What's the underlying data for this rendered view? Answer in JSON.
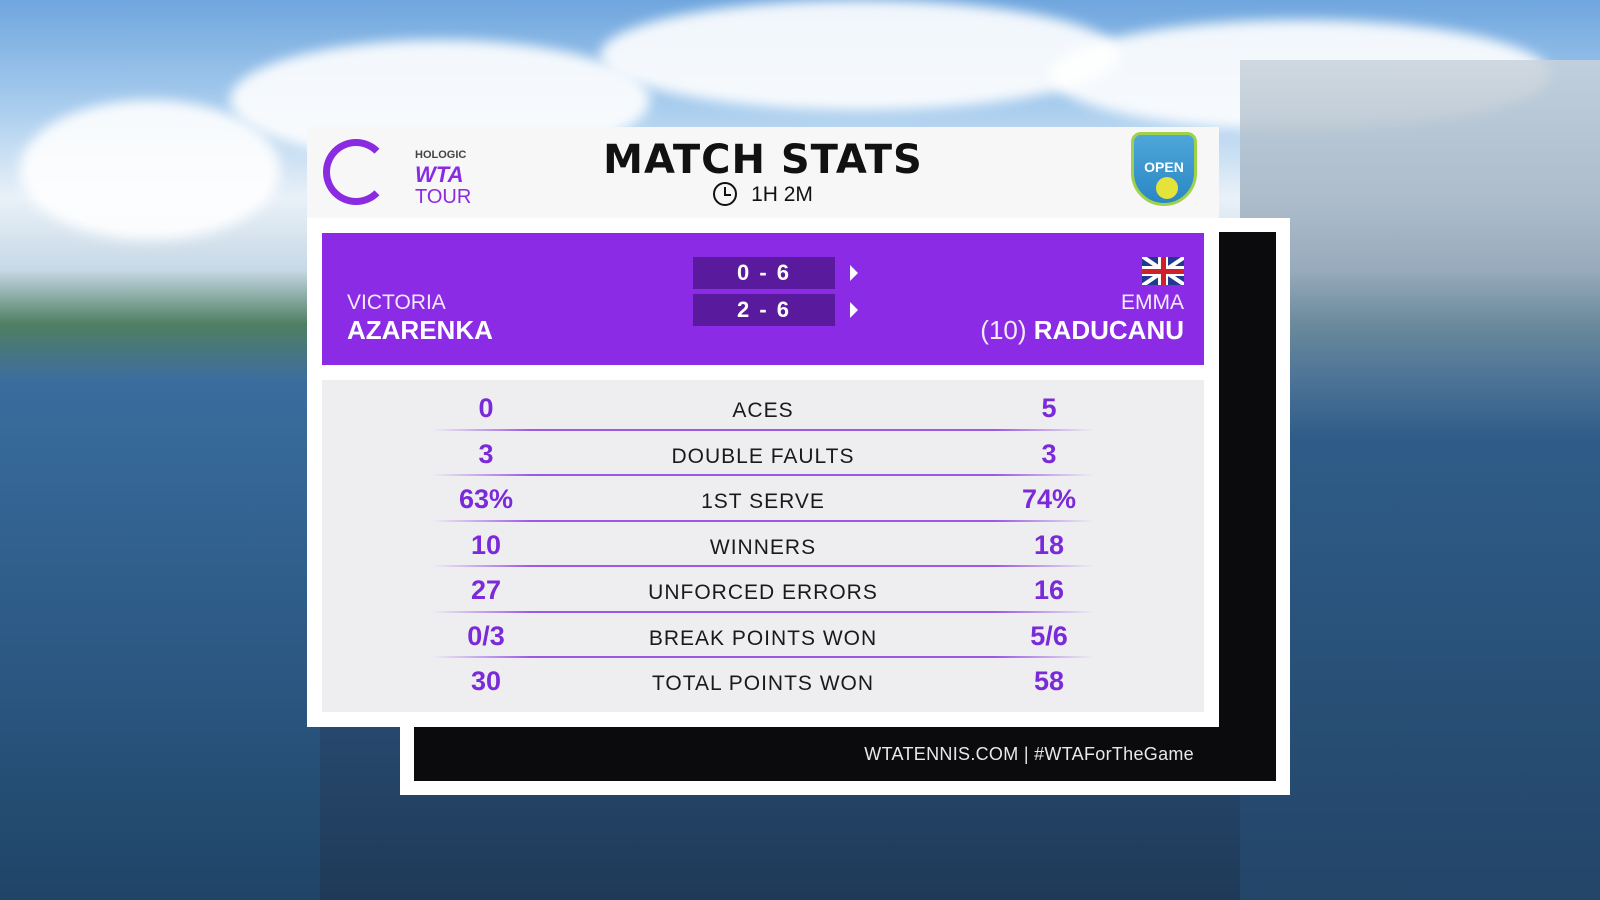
{
  "header": {
    "title": "MATCH STATS",
    "duration": "1H 2M",
    "logo_left": {
      "line1": "HOLOGIC",
      "line2": "WTA",
      "line3": "TOUR"
    },
    "logo_right": "OPEN"
  },
  "match": {
    "player1": {
      "first": "VICTORIA",
      "last": "AZARENKA",
      "seed": ""
    },
    "player2": {
      "first": "EMMA",
      "last": "RADUCANU",
      "seed": "(10)",
      "flag": "great-britain-flag"
    },
    "sets": [
      "0 - 6",
      "2 - 6"
    ]
  },
  "stats": [
    {
      "label": "ACES",
      "p1": "0",
      "p2": "5"
    },
    {
      "label": "DOUBLE FAULTS",
      "p1": "3",
      "p2": "3"
    },
    {
      "label": "1ST SERVE",
      "p1": "63%",
      "p2": "74%"
    },
    {
      "label": "WINNERS",
      "p1": "10",
      "p2": "18"
    },
    {
      "label": "UNFORCED ERRORS",
      "p1": "27",
      "p2": "16"
    },
    {
      "label": "BREAK POINTS WON",
      "p1": "0/3",
      "p2": "5/6"
    },
    {
      "label": "TOTAL POINTS WON",
      "p1": "30",
      "p2": "58"
    }
  ],
  "footer": "WTATENNIS.COM | #WTAForTheGame",
  "colors": {
    "accent": "#8b2be6",
    "set_box": "#5a1a9e",
    "value": "#7a2ad9"
  }
}
